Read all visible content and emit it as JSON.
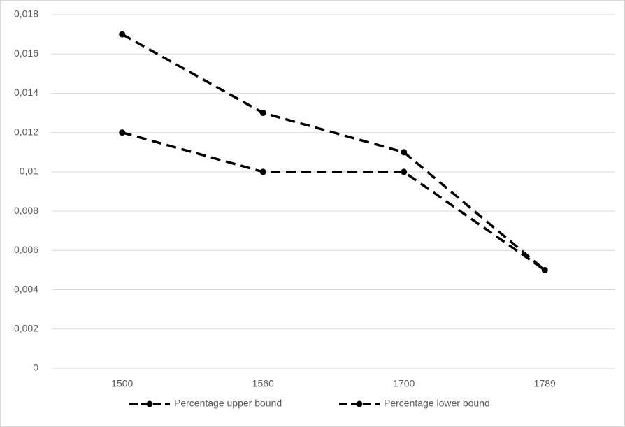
{
  "chart_data": {
    "type": "line",
    "categories": [
      "1500",
      "1560",
      "1700",
      "1789"
    ],
    "series": [
      {
        "name": "Percentage upper bound",
        "color": "#000000",
        "values": [
          0.017,
          0.013,
          0.011,
          0.005
        ]
      },
      {
        "name": "Percentage lower bound",
        "color": "#000000",
        "values": [
          0.012,
          0.01,
          0.01,
          0.005
        ]
      }
    ],
    "ylim": [
      0,
      0.018
    ],
    "yticks": [
      0,
      {
        "value": 0.002,
        "label": "0,002"
      },
      {
        "value": 0.004,
        "label": "0,004"
      },
      {
        "value": 0.006,
        "label": "0,006"
      },
      {
        "value": 0.008,
        "label": "0,008"
      },
      {
        "value": 0.01,
        "label": "0,01"
      },
      {
        "value": 0.012,
        "label": "0,012"
      },
      {
        "value": 0.014,
        "label": "0,014"
      },
      {
        "value": 0.016,
        "label": "0,016"
      },
      {
        "value": 0.018,
        "label": "0,018"
      }
    ],
    "grid": true,
    "legend": "bottom",
    "line_style": "dashed"
  }
}
